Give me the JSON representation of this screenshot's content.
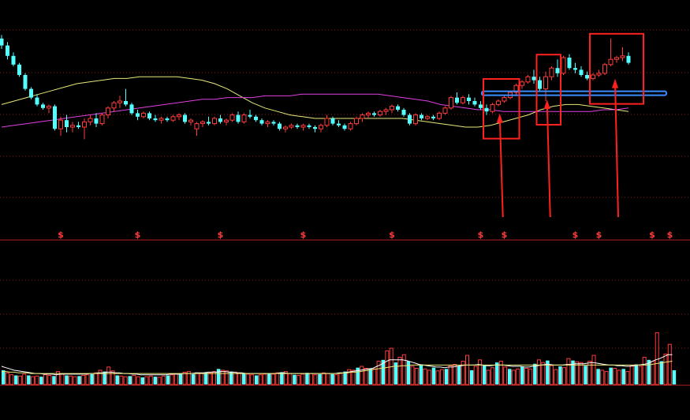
{
  "chart_data": [
    {
      "type": "candlestick",
      "title": "",
      "colors": {
        "background": "#000000",
        "up": "#ff3b3b",
        "down": "#54ffff",
        "ma_long": "#e8e87a",
        "ma_mid": "#e040e0",
        "grid": "#8a1a1a",
        "signal": "#ff3b3b",
        "annotation": "#ff2020",
        "support_line": "#3a8cff"
      },
      "y_range": [
        0,
        100
      ],
      "grid": "dotted horizontal",
      "candles": [
        {
          "o": 96,
          "h": 98,
          "l": 90,
          "c": 92
        },
        {
          "o": 92,
          "h": 94,
          "l": 84,
          "c": 86
        },
        {
          "o": 86,
          "h": 88,
          "l": 80,
          "c": 81
        },
        {
          "o": 81,
          "h": 82,
          "l": 74,
          "c": 75
        },
        {
          "o": 75,
          "h": 76,
          "l": 66,
          "c": 67
        },
        {
          "o": 67,
          "h": 68,
          "l": 61,
          "c": 62
        },
        {
          "o": 62,
          "h": 64,
          "l": 57,
          "c": 58
        },
        {
          "o": 58,
          "h": 59,
          "l": 55,
          "c": 56
        },
        {
          "o": 56,
          "h": 58,
          "l": 53,
          "c": 57
        },
        {
          "o": 57,
          "h": 58,
          "l": 43,
          "c": 44
        },
        {
          "o": 44,
          "h": 51,
          "l": 40,
          "c": 49
        },
        {
          "o": 49,
          "h": 52,
          "l": 42,
          "c": 45
        },
        {
          "o": 45,
          "h": 48,
          "l": 42,
          "c": 46
        },
        {
          "o": 46,
          "h": 48,
          "l": 44,
          "c": 45
        },
        {
          "o": 45,
          "h": 50,
          "l": 38,
          "c": 48
        },
        {
          "o": 48,
          "h": 52,
          "l": 46,
          "c": 50
        },
        {
          "o": 50,
          "h": 53,
          "l": 45,
          "c": 47
        },
        {
          "o": 47,
          "h": 53,
          "l": 46,
          "c": 52
        },
        {
          "o": 52,
          "h": 57,
          "l": 50,
          "c": 56
        },
        {
          "o": 56,
          "h": 60,
          "l": 54,
          "c": 59
        },
        {
          "o": 59,
          "h": 63,
          "l": 56,
          "c": 60
        },
        {
          "o": 60,
          "h": 67,
          "l": 57,
          "c": 58
        },
        {
          "o": 58,
          "h": 59,
          "l": 52,
          "c": 53
        },
        {
          "o": 53,
          "h": 55,
          "l": 49,
          "c": 51
        },
        {
          "o": 51,
          "h": 54,
          "l": 50,
          "c": 53
        },
        {
          "o": 53,
          "h": 54,
          "l": 49,
          "c": 50
        },
        {
          "o": 50,
          "h": 52,
          "l": 48,
          "c": 49
        },
        {
          "o": 49,
          "h": 51,
          "l": 47,
          "c": 50
        },
        {
          "o": 50,
          "h": 51,
          "l": 48,
          "c": 49
        },
        {
          "o": 49,
          "h": 52,
          "l": 48,
          "c": 51
        },
        {
          "o": 51,
          "h": 53,
          "l": 49,
          "c": 52
        },
        {
          "o": 52,
          "h": 53,
          "l": 47,
          "c": 48
        },
        {
          "o": 48,
          "h": 50,
          "l": 46,
          "c": 49
        },
        {
          "o": 44,
          "h": 48,
          "l": 40,
          "c": 47
        },
        {
          "o": 47,
          "h": 49,
          "l": 45,
          "c": 48
        },
        {
          "o": 48,
          "h": 51,
          "l": 46,
          "c": 47
        },
        {
          "o": 47,
          "h": 51,
          "l": 46,
          "c": 50
        },
        {
          "o": 50,
          "h": 52,
          "l": 47,
          "c": 48
        },
        {
          "o": 48,
          "h": 50,
          "l": 46,
          "c": 49
        },
        {
          "o": 49,
          "h": 53,
          "l": 48,
          "c": 52
        },
        {
          "o": 52,
          "h": 54,
          "l": 47,
          "c": 48
        },
        {
          "o": 48,
          "h": 53,
          "l": 47,
          "c": 52
        },
        {
          "o": 52,
          "h": 55,
          "l": 50,
          "c": 51
        },
        {
          "o": 51,
          "h": 52,
          "l": 48,
          "c": 49
        },
        {
          "o": 49,
          "h": 50,
          "l": 46,
          "c": 47
        },
        {
          "o": 47,
          "h": 49,
          "l": 45,
          "c": 48
        },
        {
          "o": 48,
          "h": 49,
          "l": 46,
          "c": 47
        },
        {
          "o": 47,
          "h": 48,
          "l": 43,
          "c": 44
        },
        {
          "o": 44,
          "h": 46,
          "l": 42,
          "c": 45
        },
        {
          "o": 45,
          "h": 47,
          "l": 44,
          "c": 46
        },
        {
          "o": 46,
          "h": 47,
          "l": 44,
          "c": 45
        },
        {
          "o": 45,
          "h": 47,
          "l": 43,
          "c": 46
        },
        {
          "o": 46,
          "h": 47,
          "l": 44,
          "c": 45
        },
        {
          "o": 45,
          "h": 46,
          "l": 42,
          "c": 44
        },
        {
          "o": 44,
          "h": 47,
          "l": 42,
          "c": 46
        },
        {
          "o": 46,
          "h": 52,
          "l": 45,
          "c": 50
        },
        {
          "o": 50,
          "h": 51,
          "l": 46,
          "c": 47
        },
        {
          "o": 47,
          "h": 49,
          "l": 45,
          "c": 46
        },
        {
          "o": 46,
          "h": 47,
          "l": 43,
          "c": 44
        },
        {
          "o": 44,
          "h": 48,
          "l": 43,
          "c": 47
        },
        {
          "o": 47,
          "h": 51,
          "l": 46,
          "c": 50
        },
        {
          "o": 50,
          "h": 53,
          "l": 48,
          "c": 52
        },
        {
          "o": 52,
          "h": 54,
          "l": 50,
          "c": 53
        },
        {
          "o": 53,
          "h": 54,
          "l": 51,
          "c": 52
        },
        {
          "o": 52,
          "h": 55,
          "l": 51,
          "c": 54
        },
        {
          "o": 54,
          "h": 56,
          "l": 52,
          "c": 55
        },
        {
          "o": 55,
          "h": 58,
          "l": 53,
          "c": 57
        },
        {
          "o": 57,
          "h": 58,
          "l": 54,
          "c": 55
        },
        {
          "o": 55,
          "h": 56,
          "l": 51,
          "c": 52
        },
        {
          "o": 52,
          "h": 53,
          "l": 46,
          "c": 47
        },
        {
          "o": 47,
          "h": 53,
          "l": 46,
          "c": 52
        },
        {
          "o": 52,
          "h": 53,
          "l": 49,
          "c": 50
        },
        {
          "o": 50,
          "h": 52,
          "l": 49,
          "c": 51
        },
        {
          "o": 51,
          "h": 52,
          "l": 49,
          "c": 50
        },
        {
          "o": 50,
          "h": 54,
          "l": 49,
          "c": 53
        },
        {
          "o": 53,
          "h": 57,
          "l": 52,
          "c": 56
        },
        {
          "o": 56,
          "h": 63,
          "l": 55,
          "c": 62
        },
        {
          "o": 62,
          "h": 65,
          "l": 58,
          "c": 59
        },
        {
          "o": 59,
          "h": 63,
          "l": 58,
          "c": 62
        },
        {
          "o": 62,
          "h": 64,
          "l": 58,
          "c": 60
        },
        {
          "o": 60,
          "h": 62,
          "l": 57,
          "c": 58
        },
        {
          "o": 58,
          "h": 60,
          "l": 55,
          "c": 56
        },
        {
          "o": 56,
          "h": 58,
          "l": 52,
          "c": 54
        },
        {
          "o": 54,
          "h": 59,
          "l": 53,
          "c": 58
        },
        {
          "o": 58,
          "h": 61,
          "l": 57,
          "c": 60
        },
        {
          "o": 60,
          "h": 63,
          "l": 59,
          "c": 62
        },
        {
          "o": 62,
          "h": 66,
          "l": 61,
          "c": 65
        },
        {
          "o": 65,
          "h": 70,
          "l": 63,
          "c": 69
        },
        {
          "o": 69,
          "h": 72,
          "l": 67,
          "c": 71
        },
        {
          "o": 71,
          "h": 75,
          "l": 70,
          "c": 74
        },
        {
          "o": 74,
          "h": 78,
          "l": 70,
          "c": 72
        },
        {
          "o": 72,
          "h": 74,
          "l": 66,
          "c": 67
        },
        {
          "o": 67,
          "h": 77,
          "l": 60,
          "c": 74
        },
        {
          "o": 74,
          "h": 80,
          "l": 72,
          "c": 79
        },
        {
          "o": 79,
          "h": 84,
          "l": 74,
          "c": 76
        },
        {
          "o": 76,
          "h": 86,
          "l": 75,
          "c": 85
        },
        {
          "o": 85,
          "h": 87,
          "l": 78,
          "c": 79
        },
        {
          "o": 79,
          "h": 82,
          "l": 76,
          "c": 78
        },
        {
          "o": 78,
          "h": 80,
          "l": 74,
          "c": 75
        },
        {
          "o": 75,
          "h": 77,
          "l": 72,
          "c": 73
        },
        {
          "o": 73,
          "h": 76,
          "l": 72,
          "c": 75
        },
        {
          "o": 75,
          "h": 78,
          "l": 74,
          "c": 76
        },
        {
          "o": 76,
          "h": 82,
          "l": 75,
          "c": 81
        },
        {
          "o": 81,
          "h": 96,
          "l": 80,
          "c": 84
        },
        {
          "o": 84,
          "h": 86,
          "l": 82,
          "c": 85
        },
        {
          "o": 85,
          "h": 91,
          "l": 83,
          "c": 86
        },
        {
          "o": 86,
          "h": 88,
          "l": 81,
          "c": 82
        }
      ],
      "ma_long": [
        58,
        60,
        62,
        64,
        66,
        68,
        70,
        71,
        72,
        73,
        73,
        74,
        74,
        74,
        74,
        73,
        72,
        70,
        67,
        63,
        59,
        56,
        54,
        52,
        51,
        50,
        50,
        50,
        50,
        50,
        50,
        50,
        50,
        49,
        48,
        47,
        46,
        45,
        45,
        46,
        48,
        50,
        52,
        55,
        57,
        58,
        58,
        57,
        56,
        55,
        54
      ],
      "ma_mid": [
        45,
        46,
        47,
        48,
        49,
        50,
        51,
        52,
        53,
        54,
        55,
        56,
        57,
        58,
        59,
        60,
        61,
        61,
        62,
        62,
        62,
        63,
        63,
        63,
        64,
        64,
        64,
        64,
        64,
        64,
        64,
        63,
        62,
        61,
        60,
        58,
        57,
        56,
        55,
        55,
        54,
        54,
        54,
        54,
        54,
        54,
        54,
        54,
        55,
        55,
        56
      ],
      "support_level": 64.5,
      "signal_positions": [
        10,
        23,
        37,
        51,
        66,
        81,
        85,
        97,
        101,
        110,
        113
      ],
      "signal_label": "$",
      "annotation_boxes": [
        {
          "from": 82,
          "to": 87
        },
        {
          "from": 91,
          "to": 94
        },
        {
          "from": 100,
          "to": 108
        }
      ]
    },
    {
      "type": "bar",
      "title": "",
      "y_range": [
        0,
        100
      ],
      "volume": [
        22,
        18,
        15,
        14,
        13,
        16,
        14,
        12,
        13,
        12,
        15,
        14,
        13,
        20,
        16,
        14,
        13,
        12,
        13,
        14,
        15,
        16,
        18,
        22,
        20,
        27,
        21,
        14,
        13,
        12,
        13,
        14,
        12,
        11,
        12,
        13,
        12,
        11,
        13,
        14,
        15,
        16,
        17,
        19,
        20,
        16,
        18,
        17,
        19,
        18,
        20,
        24,
        22,
        21,
        20,
        19,
        18,
        17,
        16,
        15,
        14,
        15,
        16,
        17,
        16,
        18,
        19,
        20,
        17,
        15,
        14,
        16,
        18,
        17,
        15,
        16,
        18,
        17,
        16,
        15,
        17,
        20,
        23,
        22,
        26,
        28,
        25,
        25,
        24,
        36,
        38,
        52,
        56,
        34,
        42,
        46,
        36,
        28,
        25,
        31,
        24,
        22,
        26,
        21,
        23,
        24,
        29,
        31,
        28,
        36,
        45,
        22,
        28,
        38,
        30,
        22,
        26,
        34,
        36,
        27,
        24,
        22,
        24,
        28,
        25,
        24,
        32,
        38,
        34,
        37,
        29,
        23,
        28,
        26,
        40,
        37,
        35,
        34,
        29,
        36,
        45,
        24,
        22,
        20,
        26,
        25,
        22,
        24,
        20,
        29,
        31,
        28,
        42,
        38,
        36,
        80,
        36,
        47,
        62,
        22
      ],
      "ma_vol": [
        28,
        26,
        24,
        22,
        21,
        20,
        19,
        18,
        17,
        17,
        16,
        16,
        16,
        15,
        16,
        16,
        16,
        16,
        16,
        16,
        16,
        17,
        17,
        18,
        18,
        19,
        19,
        18,
        18,
        17,
        17,
        16,
        16,
        15,
        15,
        15,
        15,
        15,
        15,
        15,
        16,
        16,
        16,
        17,
        17,
        17,
        18,
        18,
        18,
        19,
        19,
        19,
        20,
        20,
        19,
        19,
        18,
        18,
        17,
        17,
        17,
        17,
        17,
        17,
        17,
        17,
        18,
        18,
        17,
        17,
        17,
        17,
        17,
        17,
        17,
        17,
        17,
        17,
        17,
        17,
        18,
        18,
        19,
        20,
        21,
        22,
        23,
        24,
        25,
        28,
        31,
        35,
        38,
        38,
        38,
        38,
        37,
        35,
        33,
        31,
        30,
        29,
        28,
        27,
        27,
        26,
        27,
        27,
        28,
        29,
        30,
        30,
        30,
        31,
        30,
        29,
        29,
        30,
        30,
        30,
        29,
        28,
        28,
        28,
        27,
        27,
        28,
        29,
        30,
        31,
        31,
        30,
        30,
        30,
        31,
        31,
        32,
        32,
        32,
        33,
        34,
        33,
        32,
        31,
        30,
        30,
        29,
        29,
        28,
        28,
        29,
        30,
        31,
        32,
        35,
        38,
        40,
        43,
        46,
        46
      ],
      "ma_vol2": [
        20,
        20,
        19,
        19,
        18,
        18,
        18,
        17,
        17,
        17,
        17,
        17,
        17,
        17,
        17,
        17,
        17,
        17,
        17,
        17,
        17,
        17,
        17,
        17,
        17,
        17,
        17,
        17,
        17,
        17,
        17,
        17,
        17,
        17,
        17,
        17,
        17,
        17,
        17,
        17,
        17,
        17,
        17,
        17,
        17,
        17,
        17,
        17,
        17,
        17,
        17,
        17,
        17,
        17,
        17,
        17,
        17,
        17,
        17,
        17,
        17,
        17,
        17,
        17,
        17,
        17,
        17,
        17,
        17,
        17,
        17,
        17,
        17,
        17,
        17,
        17,
        17,
        17,
        17,
        17,
        17,
        18,
        18,
        19,
        19,
        20,
        21,
        22,
        23,
        24,
        25,
        26,
        27,
        28,
        28,
        29,
        29,
        30,
        30,
        30,
        30,
        30,
        30,
        30,
        30,
        30,
        30,
        30,
        30,
        30,
        30,
        30,
        30,
        30,
        30,
        30,
        30,
        30,
        30,
        30,
        30,
        30,
        30,
        30,
        30,
        30,
        30,
        30,
        30,
        30,
        30,
        30,
        30,
        30,
        30,
        30,
        30,
        30,
        30,
        30,
        30,
        30,
        30,
        30,
        30,
        30,
        30,
        30,
        30,
        30,
        30,
        30,
        30,
        30,
        31,
        32,
        33,
        34,
        35,
        36
      ]
    }
  ]
}
